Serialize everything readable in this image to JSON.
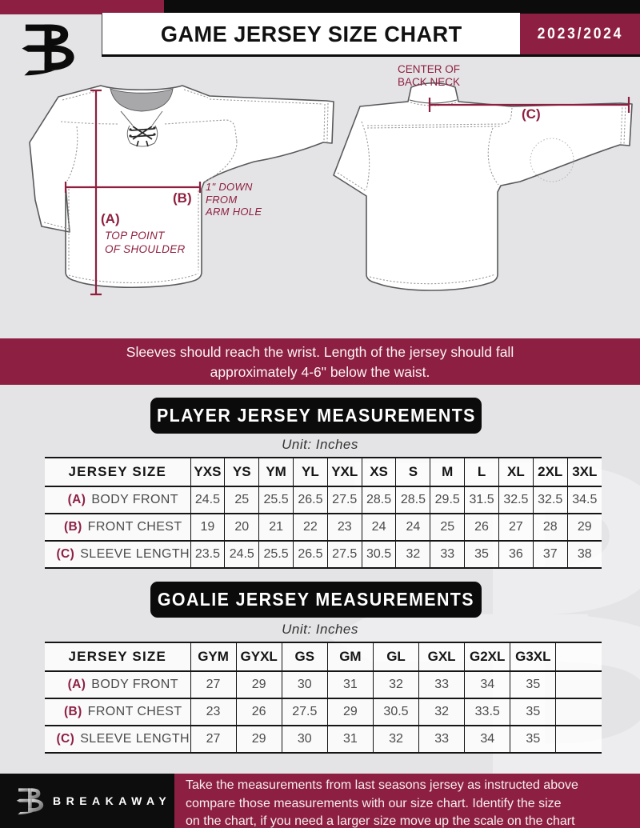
{
  "header": {
    "title": "GAME JERSEY SIZE CHART",
    "season": "2023/2024"
  },
  "diagram": {
    "front": {
      "a_label": "(A)",
      "a_note_line1": "TOP POINT",
      "a_note_line2": "OF SHOULDER",
      "b_label": "(B)",
      "b_note_line1": "1\" DOWN",
      "b_note_line2": "FROM",
      "b_note_line3": "ARM HOLE"
    },
    "back": {
      "c_label": "(C)",
      "c_note_line1": "CENTER OF",
      "c_note_line2": "BACK NECK"
    }
  },
  "notice": {
    "line1": "Sleeves should reach the wrist. Length of the jersey should fall",
    "line2": "approximately 4-6\" below the waist."
  },
  "player_table": {
    "heading": "PLAYER JERSEY MEASUREMENTS",
    "unit": "Unit: Inches",
    "corner_label": "JERSEY SIZE",
    "columns": [
      "YXS",
      "YS",
      "YM",
      "YL",
      "YXL",
      "XS",
      "S",
      "M",
      "L",
      "XL",
      "2XL",
      "3XL"
    ],
    "rows": [
      {
        "key": "(A)",
        "label": "BODY FRONT",
        "values": [
          "24.5",
          "25",
          "25.5",
          "26.5",
          "27.5",
          "28.5",
          "28.5",
          "29.5",
          "31.5",
          "32.5",
          "32.5",
          "34.5"
        ]
      },
      {
        "key": "(B)",
        "label": "FRONT CHEST",
        "values": [
          "19",
          "20",
          "21",
          "22",
          "23",
          "24",
          "24",
          "25",
          "26",
          "27",
          "28",
          "29"
        ]
      },
      {
        "key": "(C)",
        "label": "SLEEVE LENGTH",
        "values": [
          "23.5",
          "24.5",
          "25.5",
          "26.5",
          "27.5",
          "30.5",
          "32",
          "33",
          "35",
          "36",
          "37",
          "38"
        ]
      }
    ]
  },
  "goalie_table": {
    "heading": "GOALIE JERSEY MEASUREMENTS",
    "unit": "Unit: Inches",
    "corner_label": "JERSEY SIZE",
    "columns": [
      "GYM",
      "GYXL",
      "GS",
      "GM",
      "GL",
      "GXL",
      "G2XL",
      "G3XL",
      ""
    ],
    "rows": [
      {
        "key": "(A)",
        "label": "BODY FRONT",
        "values": [
          "27",
          "29",
          "30",
          "31",
          "32",
          "33",
          "34",
          "35",
          ""
        ]
      },
      {
        "key": "(B)",
        "label": "FRONT CHEST",
        "values": [
          "23",
          "26",
          "27.5",
          "29",
          "30.5",
          "32",
          "33.5",
          "35",
          ""
        ]
      },
      {
        "key": "(C)",
        "label": "SLEEVE LENGTH",
        "values": [
          "27",
          "29",
          "30",
          "31",
          "32",
          "33",
          "34",
          "35",
          ""
        ]
      }
    ]
  },
  "footer": {
    "brand": "BREAKAWAY",
    "line1": "Take the measurements from last seasons jersey as instructed above",
    "line2": "compare those measurements  with our size chart. Identify the size",
    "line3": "on the chart, if you need a larger size move up the scale on the chart"
  },
  "colors": {
    "maroon": "#8d2042",
    "black": "#0c0c0c",
    "background": "#e4e4e6",
    "line_maroon": "#8e1f3f"
  }
}
